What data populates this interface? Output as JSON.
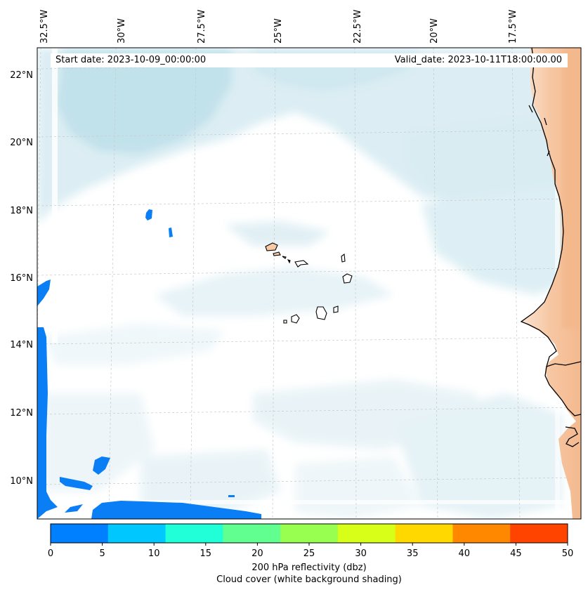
{
  "header": {
    "start_date": "Start date: 2023-10-09_00:00:00",
    "valid_date": "Valid_date: 2023-10-11T18:00:00.00"
  },
  "longitude_labels": [
    "32.5°W",
    "30°W",
    "27.5°W",
    "25°W",
    "22.5°W",
    "20°W",
    "17.5°W"
  ],
  "latitude_labels": [
    "22°N",
    "20°N",
    "18°N",
    "16°N",
    "14°N",
    "12°N",
    "10°N"
  ],
  "colorbar": {
    "ticks": [
      "0",
      "5",
      "10",
      "15",
      "20",
      "25",
      "30",
      "35",
      "40",
      "45",
      "50"
    ],
    "colors": [
      "#0080ff",
      "#00c8ff",
      "#20ffd8",
      "#60ff90",
      "#98ff50",
      "#d8ff18",
      "#ffd800",
      "#ff8800",
      "#ff4400"
    ],
    "label": "200 hPa reflectivity (dbz)",
    "sublabel": "Cloud cover (white background shading)"
  },
  "colors": {
    "cloud": "#cde6ee",
    "land": "#f7c9a4",
    "coast": "#000000",
    "grid": "#c8c8c8"
  }
}
